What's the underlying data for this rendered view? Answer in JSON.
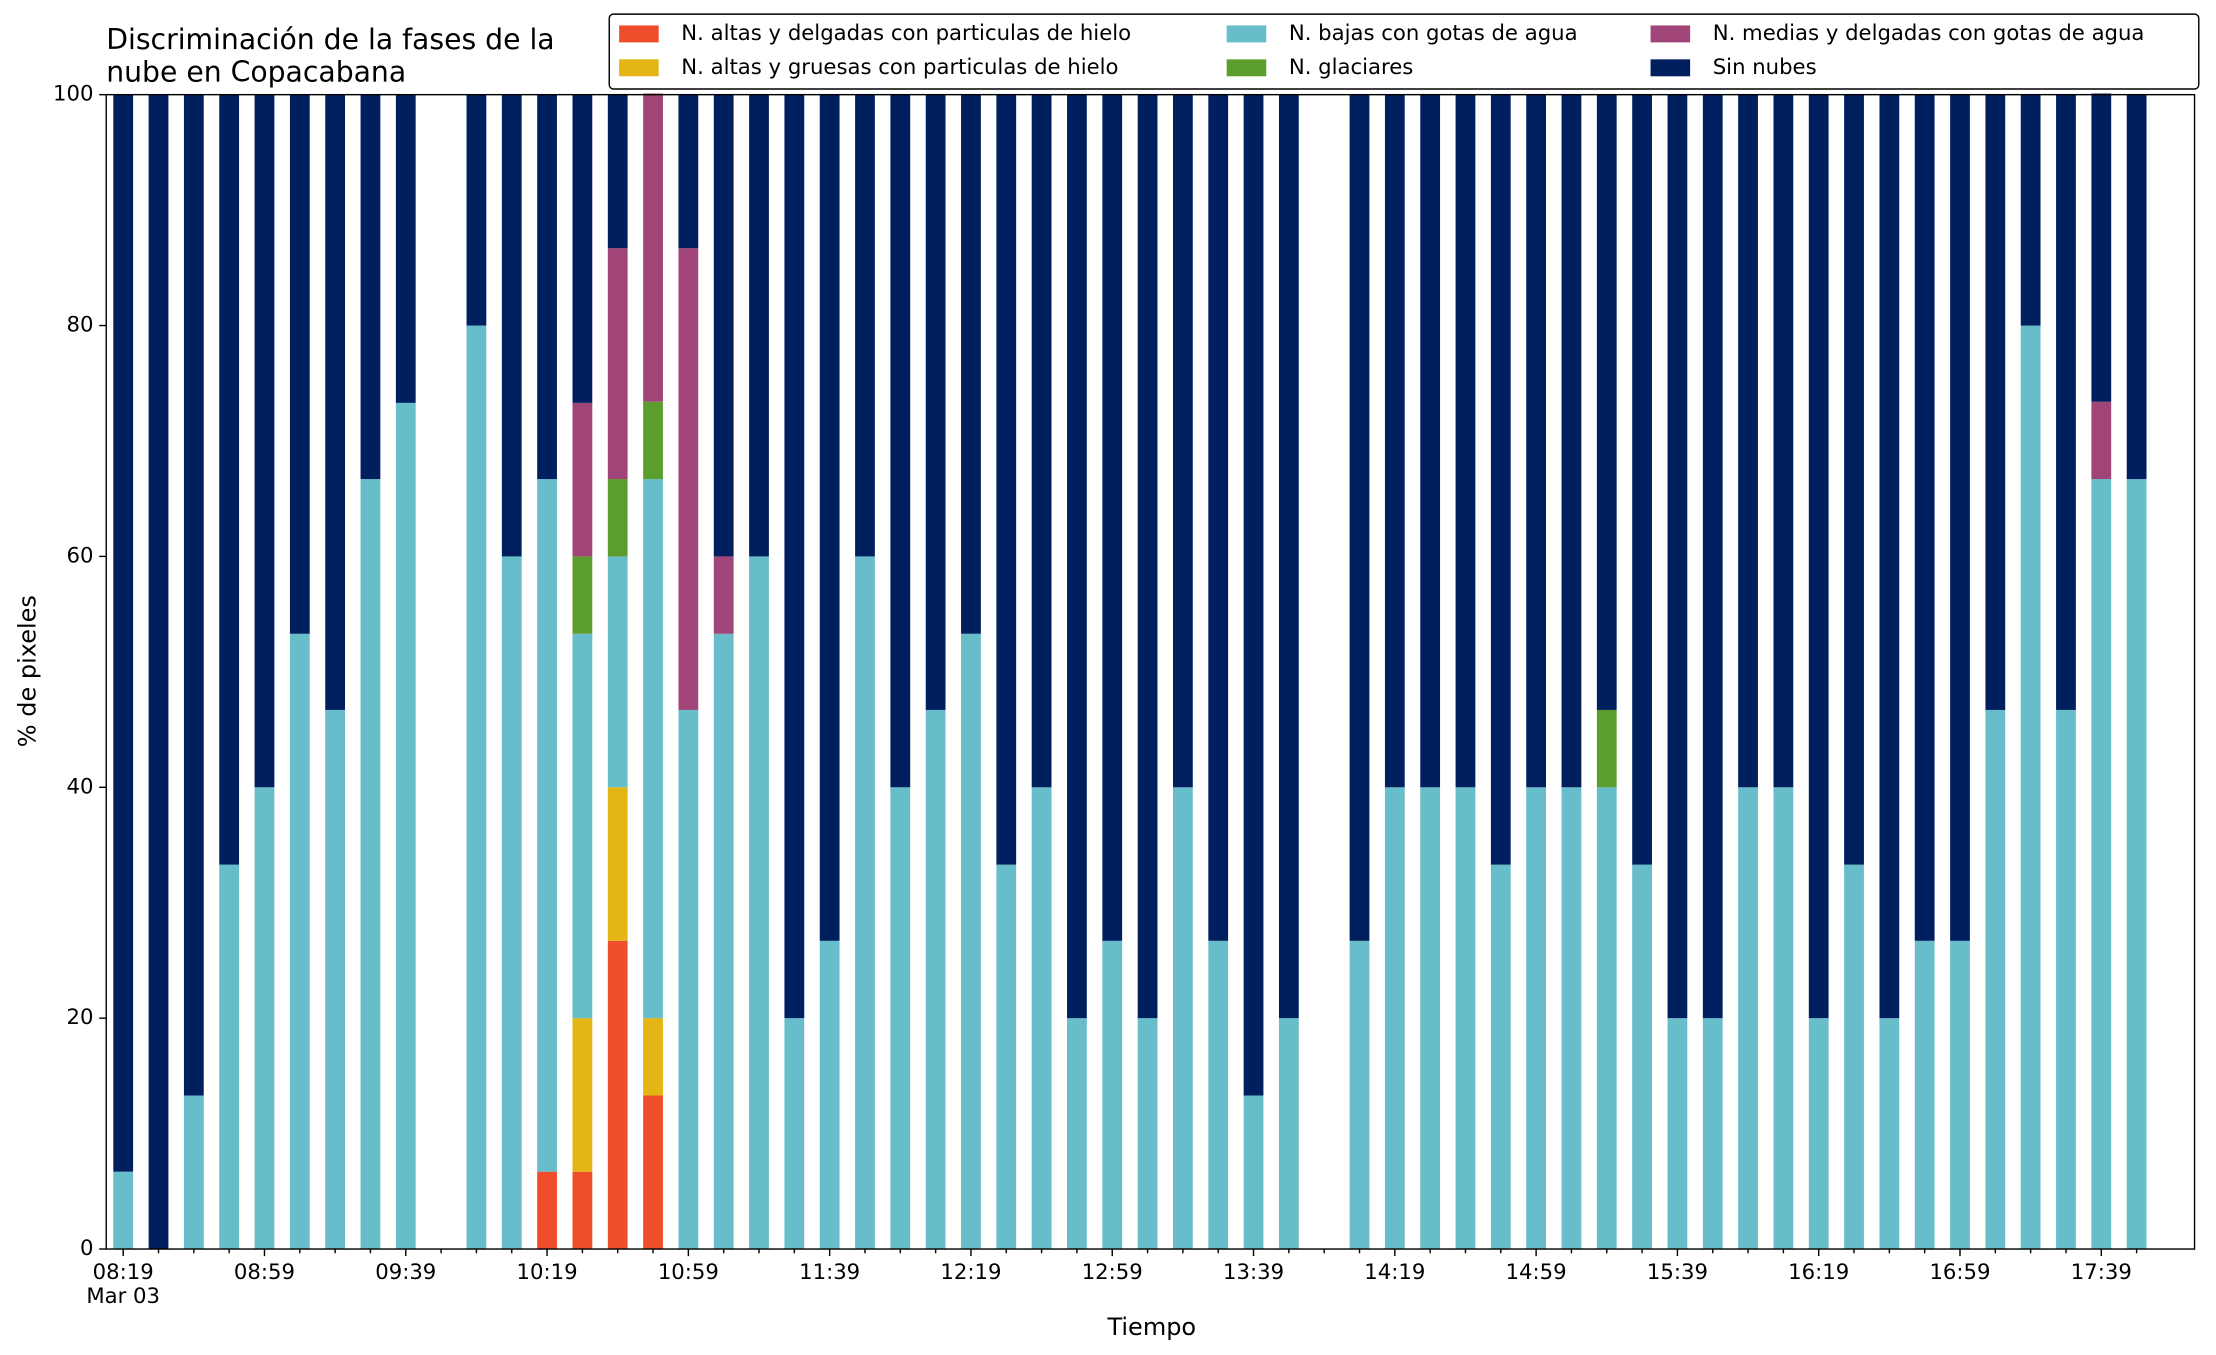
{
  "chart_data": {
    "type": "stacked_bar",
    "title": [
      "Discriminación de la fases de la",
      "nube en Copacabana"
    ],
    "x_label": "Tiempo",
    "y_label": "% de pixeles",
    "date_label": "Mar 03",
    "categories": [
      "08:19",
      null,
      null,
      null,
      "08:59",
      null,
      null,
      null,
      "09:39",
      null,
      null,
      null,
      "10:19",
      null,
      null,
      null,
      "10:59",
      null,
      null,
      null,
      "11:39",
      null,
      null,
      null,
      "12:19",
      null,
      null,
      null,
      "12:59",
      null,
      null,
      null,
      "13:39",
      null,
      null,
      null,
      "14:19",
      null,
      null,
      null,
      "14:59",
      null,
      null,
      null,
      "15:39",
      null,
      null,
      null,
      "16:19",
      null,
      null,
      null,
      "16:59",
      null,
      null,
      null,
      "17:39",
      null
    ],
    "ylim": [
      0,
      100
    ],
    "yticks": [
      0,
      20,
      40,
      60,
      80,
      100
    ],
    "legend": "upper right",
    "series": [
      {
        "name": "N. altas y delgadas con particulas de hielo",
        "color": "#f04e2a",
        "values": [
          0,
          0,
          0,
          0,
          0,
          0,
          0,
          0,
          0,
          null,
          0,
          0,
          6.7,
          6.7,
          26.7,
          13.3,
          0,
          0,
          0,
          0,
          0,
          0,
          0,
          0,
          0,
          0,
          0,
          0,
          0,
          0,
          0,
          0,
          0,
          0,
          null,
          0,
          0,
          0,
          0,
          0,
          0,
          0,
          0,
          0,
          0,
          0,
          0,
          0,
          0,
          0,
          0,
          0,
          0,
          0,
          0,
          0,
          0,
          0
        ]
      },
      {
        "name": "N. altas y gruesas con particulas de hielo",
        "color": "#e3b515",
        "values": [
          0,
          0,
          0,
          0,
          0,
          0,
          0,
          0,
          0,
          null,
          0,
          0,
          0,
          13.3,
          13.3,
          6.7,
          0,
          0,
          0,
          0,
          0,
          0,
          0,
          0,
          0,
          0,
          0,
          0,
          0,
          0,
          0,
          0,
          0,
          0,
          null,
          0,
          0,
          0,
          0,
          0,
          0,
          0,
          0,
          0,
          0,
          0,
          0,
          0,
          0,
          0,
          0,
          0,
          0,
          0,
          0,
          0,
          0,
          0
        ]
      },
      {
        "name": "N. bajas con gotas de agua",
        "color": "#67bdc9",
        "values": [
          6.7,
          0,
          13.3,
          33.3,
          40,
          53.3,
          46.7,
          66.7,
          73.3,
          null,
          80,
          60,
          60,
          33.3,
          20,
          46.7,
          46.7,
          53.3,
          60,
          20,
          26.7,
          60,
          40,
          46.7,
          53.3,
          33.3,
          40,
          20,
          26.7,
          20,
          40,
          26.7,
          13.3,
          20,
          null,
          26.7,
          40,
          40,
          40,
          33.3,
          40,
          40,
          40,
          33.3,
          20,
          20,
          40,
          40,
          20,
          33.3,
          20,
          26.7,
          26.7,
          46.7,
          80,
          46.7,
          66.7,
          66.7
        ]
      },
      {
        "name": "N. glaciares",
        "color": "#5c9e2e",
        "values": [
          0,
          0,
          0,
          0,
          0,
          0,
          0,
          0,
          0,
          null,
          0,
          0,
          0,
          6.7,
          6.7,
          6.7,
          0,
          0,
          0,
          0,
          0,
          0,
          0,
          0,
          0,
          0,
          0,
          0,
          0,
          0,
          0,
          0,
          0,
          0,
          null,
          0,
          0,
          0,
          0,
          0,
          0,
          0,
          6.7,
          0,
          0,
          0,
          0,
          0,
          0,
          0,
          0,
          0,
          0,
          0,
          0,
          0,
          0,
          0
        ]
      },
      {
        "name": "N. medias y delgadas con gotas de agua",
        "color": "#a14477",
        "values": [
          0,
          0,
          0,
          0,
          0,
          0,
          0,
          0,
          0,
          null,
          0,
          0,
          0,
          13.3,
          20,
          26.7,
          40,
          6.7,
          0,
          0,
          0,
          0,
          0,
          0,
          0,
          0,
          0,
          0,
          0,
          0,
          0,
          0,
          0,
          0,
          null,
          0,
          0,
          0,
          0,
          0,
          0,
          0,
          0,
          0,
          0,
          0,
          0,
          0,
          0,
          0,
          0,
          0,
          0,
          0,
          0,
          0,
          6.7,
          0
        ]
      },
      {
        "name": "Sin nubes",
        "color": "#001f5f",
        "values": [
          93.3,
          100,
          86.7,
          66.7,
          60,
          46.7,
          53.3,
          33.3,
          26.7,
          null,
          20,
          40,
          33.3,
          26.7,
          13.3,
          0,
          13.3,
          40,
          40,
          80,
          73.3,
          40,
          60,
          53.3,
          46.7,
          66.7,
          60,
          80,
          73.3,
          80,
          60,
          73.3,
          86.7,
          80,
          null,
          73.3,
          60,
          60,
          60,
          66.7,
          60,
          60,
          53.3,
          66.7,
          80,
          80,
          60,
          60,
          80,
          66.7,
          80,
          73.3,
          73.3,
          53.3,
          20,
          53.3,
          26.7,
          33.3
        ]
      }
    ]
  }
}
